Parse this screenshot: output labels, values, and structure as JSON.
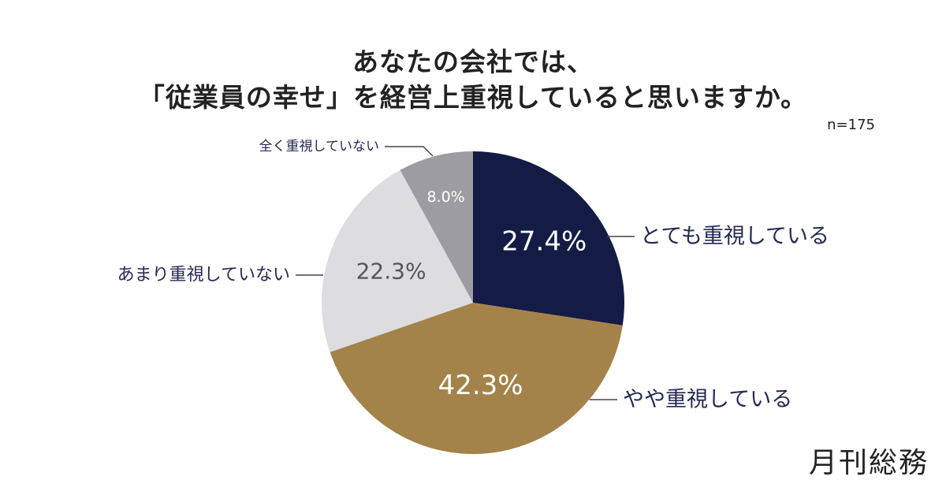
{
  "chart_data": {
    "type": "pie",
    "title_lines": [
      "あなたの会社では、",
      "「従業員の幸せ」を経営上重視していると思いますか。"
    ],
    "sample_size": "n=175",
    "slices": [
      {
        "label": "とても重視している",
        "value": 27.4,
        "display": "27.4%",
        "color": "#141c45",
        "text_color": "#ffffff"
      },
      {
        "label": "やや重視している",
        "value": 42.3,
        "display": "42.3%",
        "color": "#a4834a",
        "text_color": "#ffffff"
      },
      {
        "label": "あまり重視していない",
        "value": 22.3,
        "display": "22.3%",
        "color": "#dcdce1",
        "text_color": "#555555"
      },
      {
        "label": "全く重視していない",
        "value": 8.0,
        "display": "8.0%",
        "color": "#9c9ca2",
        "text_color": "#ffffff"
      }
    ],
    "colors": {
      "outside_label": "#232a52",
      "leader_line": "#444444"
    }
  },
  "brand": "月刊総務"
}
